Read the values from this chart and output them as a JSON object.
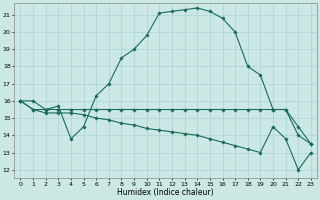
{
  "xlabel": "Humidex (Indice chaleur)",
  "background_color": "#cce8e4",
  "grid_color": "#aad4d0",
  "line_color": "#1a6b5a",
  "xlim": [
    -0.5,
    23.5
  ],
  "ylim": [
    11.5,
    21.7
  ],
  "xticks": [
    0,
    1,
    2,
    3,
    4,
    5,
    6,
    7,
    8,
    9,
    10,
    11,
    12,
    13,
    14,
    15,
    16,
    17,
    18,
    19,
    20,
    21,
    22,
    23
  ],
  "yticks": [
    12,
    13,
    14,
    15,
    16,
    17,
    18,
    19,
    20,
    21
  ],
  "line1_x": [
    0,
    1,
    2,
    3,
    4,
    5,
    6,
    7,
    8,
    9,
    10,
    11,
    12,
    13,
    14,
    15,
    16,
    17,
    18,
    19,
    20,
    21,
    22,
    23
  ],
  "line1_y": [
    16.0,
    16.0,
    15.5,
    15.7,
    13.8,
    14.5,
    16.3,
    17.0,
    18.5,
    19.0,
    19.8,
    21.1,
    21.2,
    21.3,
    21.4,
    21.2,
    20.8,
    20.0,
    18.0,
    17.5,
    15.5,
    15.5,
    14.0,
    13.5
  ],
  "line2_x": [
    0,
    1,
    2,
    3,
    4,
    5,
    6,
    7,
    8,
    9,
    10,
    11,
    12,
    13,
    14,
    15,
    16,
    17,
    18,
    19,
    20,
    21,
    22,
    23
  ],
  "line2_y": [
    16.0,
    15.5,
    15.5,
    15.5,
    15.5,
    15.5,
    15.5,
    15.5,
    15.5,
    15.5,
    15.5,
    15.5,
    15.5,
    15.5,
    15.5,
    15.5,
    15.5,
    15.5,
    15.5,
    15.5,
    15.5,
    15.5,
    14.5,
    13.5
  ],
  "line3_x": [
    0,
    1,
    2,
    3,
    4,
    5,
    6,
    7,
    8,
    9,
    10,
    11,
    12,
    13,
    14,
    15,
    16,
    17,
    18,
    19,
    20,
    21,
    22,
    23
  ],
  "line3_y": [
    16.0,
    15.5,
    15.3,
    15.3,
    15.3,
    15.2,
    15.0,
    14.9,
    14.7,
    14.6,
    14.4,
    14.3,
    14.2,
    14.1,
    14.0,
    13.8,
    13.6,
    13.4,
    13.2,
    13.0,
    14.5,
    13.8,
    12.0,
    13.0
  ]
}
